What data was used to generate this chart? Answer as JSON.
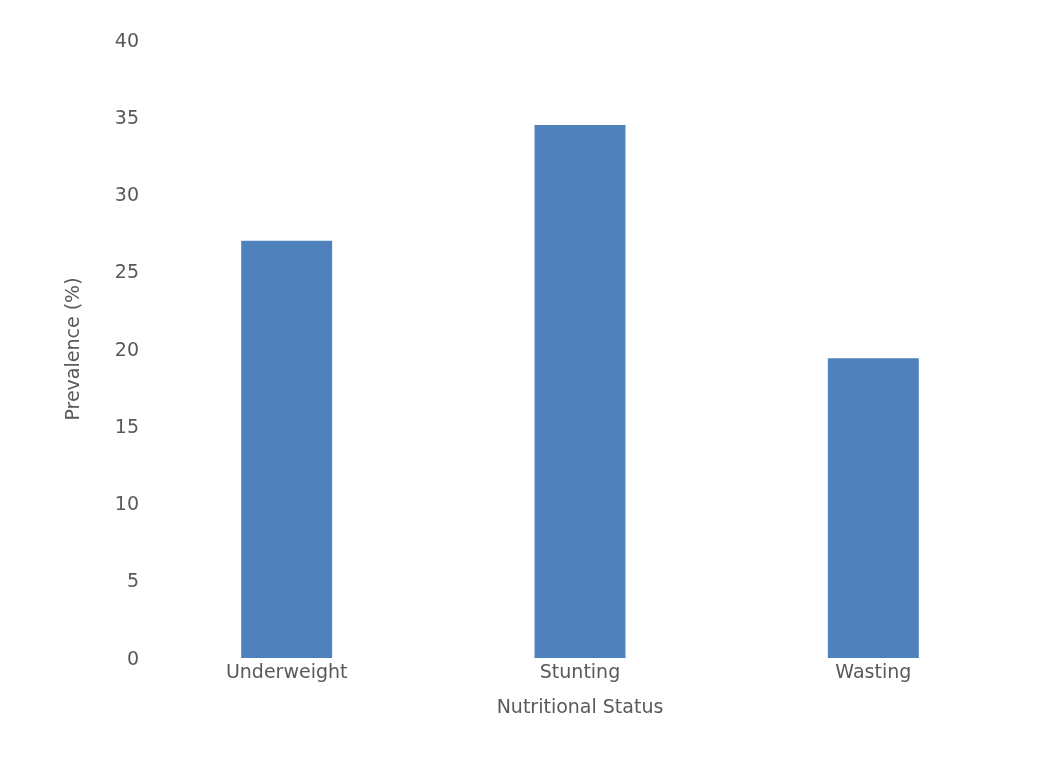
{
  "chart_data": {
    "type": "bar",
    "xlabel": "Nutritional Status",
    "ylabel": "Prevalence (%)",
    "categories": [
      "Underweight",
      "Stunting",
      "Wasting"
    ],
    "values": [
      27.0,
      34.5,
      19.4
    ],
    "color": "#4f81bd",
    "ylim": [
      0,
      40
    ],
    "yticks": [
      0,
      5,
      10,
      15,
      20,
      25,
      30,
      35,
      40
    ]
  }
}
